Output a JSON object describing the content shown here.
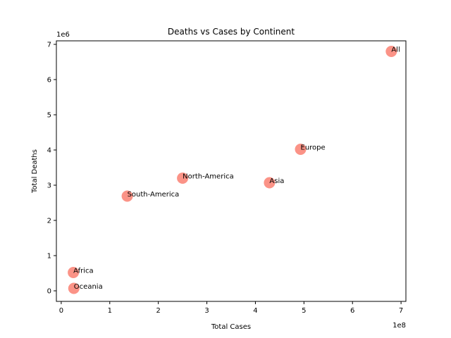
{
  "chart_data": {
    "type": "scatter",
    "title": "Deaths vs Cases by Continent",
    "xlabel": "Total Cases",
    "ylabel": "Total Deaths",
    "x_offset_text": "1e8",
    "y_offset_text": "1e6",
    "xlim": [
      -0.1,
      7.1
    ],
    "ylim": [
      -0.3,
      7.1
    ],
    "x_ticks": [
      0,
      1,
      2,
      3,
      4,
      5,
      6,
      7
    ],
    "x_tick_labels": [
      "0",
      "1",
      "2",
      "3",
      "4",
      "5",
      "6",
      "7"
    ],
    "y_ticks": [
      0,
      1,
      2,
      3,
      4,
      5,
      6,
      7
    ],
    "y_tick_labels": [
      "0",
      "1",
      "2",
      "3",
      "4",
      "5",
      "6",
      "7"
    ],
    "grid": false,
    "marker_color": "#fa8072",
    "points": [
      {
        "label": "All",
        "x": 6.8,
        "y": 6.8
      },
      {
        "label": "Europe",
        "x": 4.93,
        "y": 4.02
      },
      {
        "label": "North-America",
        "x": 2.5,
        "y": 3.2
      },
      {
        "label": "Asia",
        "x": 4.29,
        "y": 3.07
      },
      {
        "label": "South-America",
        "x": 1.36,
        "y": 2.69
      },
      {
        "label": "Africa",
        "x": 0.25,
        "y": 0.52
      },
      {
        "label": "Oceania",
        "x": 0.26,
        "y": 0.07
      }
    ]
  }
}
